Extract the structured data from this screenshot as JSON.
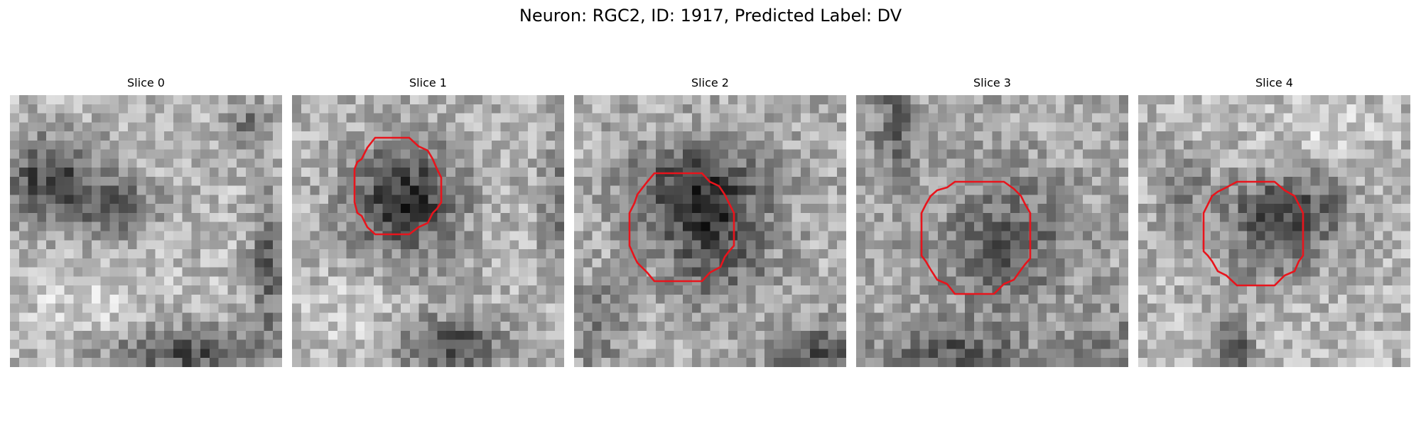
{
  "figure": {
    "title": "Neuron: RGC2, ID: 1917, Predicted Label: DV"
  },
  "colors": {
    "background": "#ffffff",
    "contour": "#e8141c",
    "colormap": "gray"
  },
  "slices": [
    {
      "title": "Slice 0",
      "has_contour": false,
      "image": "grayscale EM-like texture: dark blotch upper-left, dark band lower-middle, bright lower-left area"
    },
    {
      "title": "Slice 1",
      "has_contour": true,
      "image": "grayscale texture with dark round cell body upper-center, outlined in red"
    },
    {
      "title": "Slice 2",
      "has_contour": true,
      "image": "grayscale texture with dark round cell body center, outlined in red"
    },
    {
      "title": "Slice 3",
      "has_contour": true,
      "image": "grayscale texture with mottled round cell body center, outlined in red"
    },
    {
      "title": "Slice 4",
      "has_contour": true,
      "image": "grayscale texture with dark round cell body center, outlined in red"
    }
  ]
}
